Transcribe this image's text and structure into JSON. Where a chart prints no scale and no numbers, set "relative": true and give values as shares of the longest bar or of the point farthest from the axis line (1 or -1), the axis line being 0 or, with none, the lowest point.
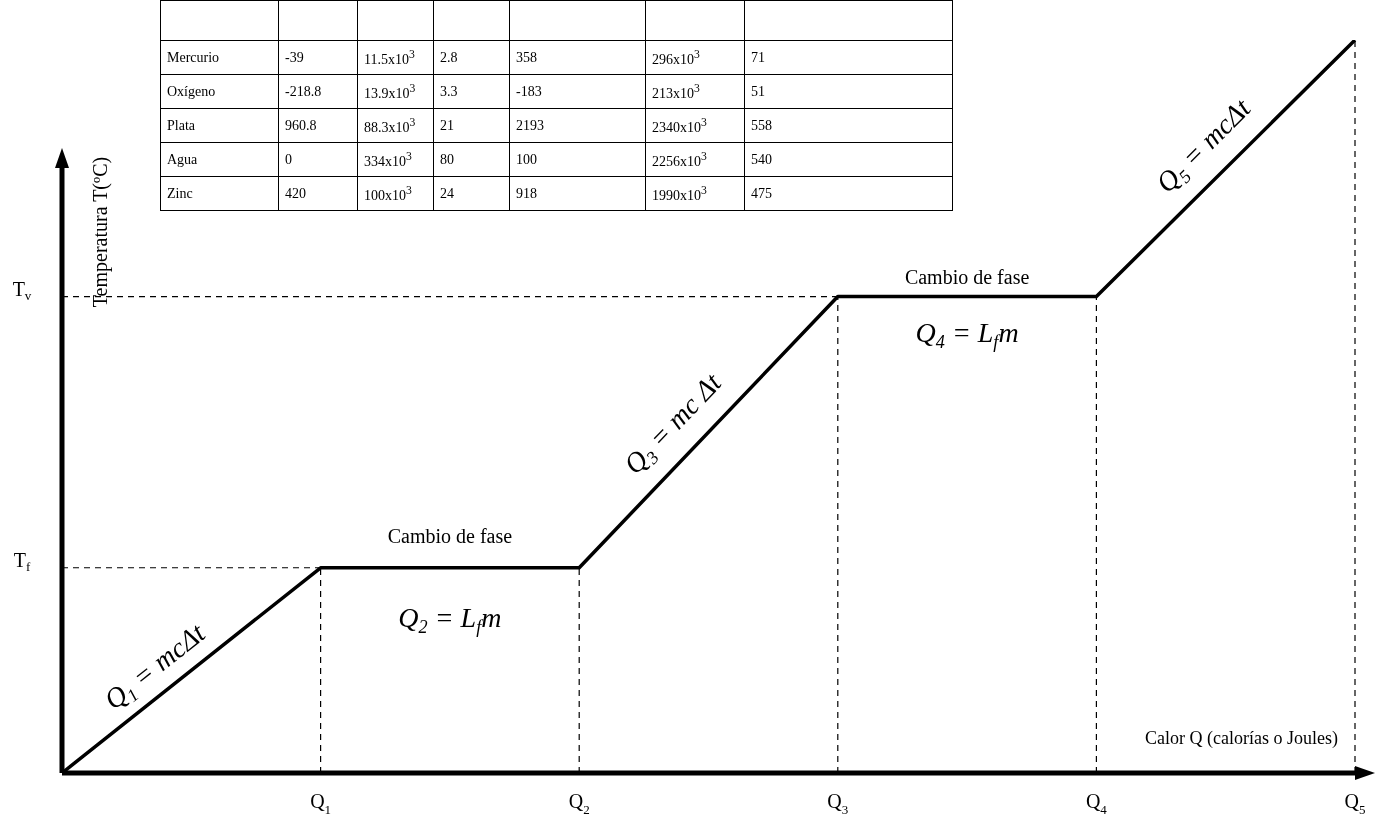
{
  "chart_data": {
    "type": "line",
    "relative": true,
    "categories": [
      null,
      "Q$_{1}$",
      "Q$_{2}$",
      "Q$_{3}$",
      "Q$_{4}$",
      "Q$_{5}$"
    ],
    "xlabel": "Calor Q (calorías o Joules)",
    "ylabel": "Temperatura T(ºC)",
    "series": [
      {
        "color": "#000000",
        "values": [
          0,
          0.28,
          0.28,
          0.65,
          0.65,
          1
        ]
      }
    ],
    "ref_lines": [
      {
        "axis": "y",
        "value": 0.28,
        "label": "T$_{f}$",
        "color": "#000000",
        "line_style": "dashed"
      },
      {
        "axis": "y",
        "value": 0.65,
        "label": "T$_{v}$",
        "color": "#000000",
        "line_style": "dashed"
      },
      {
        "axis": "x",
        "value": "Q$_{1}$",
        "color": "#000000",
        "line_style": "dashed"
      },
      {
        "axis": "x",
        "value": "Q$_{2}$",
        "color": "#000000",
        "line_style": "dashed"
      },
      {
        "axis": "x",
        "value": "Q$_{3}$",
        "color": "#000000",
        "line_style": "dashed"
      },
      {
        "axis": "x",
        "value": "Q$_{4}$",
        "color": "#000000",
        "line_style": "dashed"
      },
      {
        "axis": "x",
        "value": "Q$_{5}$",
        "color": "#000000",
        "line_style": "dashed"
      }
    ],
    "annotations": [
      "Q$_{1}$ = mcΔt",
      "Cambio de fase",
      "Q$_{2}$ = L$_{f}$m",
      "Q$_{3}$ = mc Δt",
      "Cambio de fase",
      "Q$_{4}$ = L$_{f}$m",
      "Q$_{5}$ = mcΔt",
      "Mercurio",
      "-39",
      "11.5x10$^{3}$",
      "2.8",
      "358",
      "296x10$^{3}$",
      "71",
      "Oxígeno",
      "-218.8",
      "13.9x10$^{3}$",
      "3.3",
      "-183",
      "213x10$^{3}$",
      "51",
      "Plata",
      "960.8",
      "88.3x10$^{3}$",
      "21",
      "2193",
      "2340x10$^{3}$",
      "558",
      "Agua",
      "0",
      "334x10$^{3}$",
      "80",
      "100",
      "2256x10$^{3}$",
      "540",
      "Zinc",
      "420",
      "100x10$^{3}$",
      "24",
      "918",
      "1990x10$^{3}$",
      "475"
    ]
  }
}
